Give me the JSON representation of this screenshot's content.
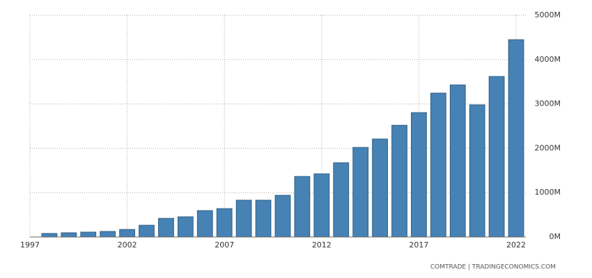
{
  "chart_data": {
    "type": "bar",
    "x": [
      1998,
      1999,
      2000,
      2001,
      2002,
      2003,
      2004,
      2005,
      2006,
      2007,
      2008,
      2009,
      2010,
      2011,
      2012,
      2013,
      2014,
      2015,
      2016,
      2017,
      2018,
      2019,
      2020,
      2021,
      2022
    ],
    "values": [
      80,
      95,
      110,
      125,
      170,
      265,
      420,
      455,
      595,
      640,
      830,
      830,
      940,
      1365,
      1425,
      1675,
      2020,
      2210,
      2520,
      2805,
      3245,
      3430,
      2980,
      3620,
      4450
    ],
    "color": "#4682b4",
    "xlim": [
      1997,
      2022.5
    ],
    "xticks": [
      1997,
      2002,
      2007,
      2012,
      2017,
      2022
    ],
    "ylim": [
      0,
      5000
    ],
    "yticks": [
      {
        "value": 0,
        "label": "0M"
      },
      {
        "value": 1000,
        "label": "1000M"
      },
      {
        "value": 2000,
        "label": "2000M"
      },
      {
        "value": 3000,
        "label": "3000M"
      },
      {
        "value": 4000,
        "label": "4000M"
      },
      {
        "value": 5000,
        "label": "5000M"
      }
    ],
    "grid": true,
    "source": "COMTRADE | TRADINGECONOMICS.COM"
  }
}
